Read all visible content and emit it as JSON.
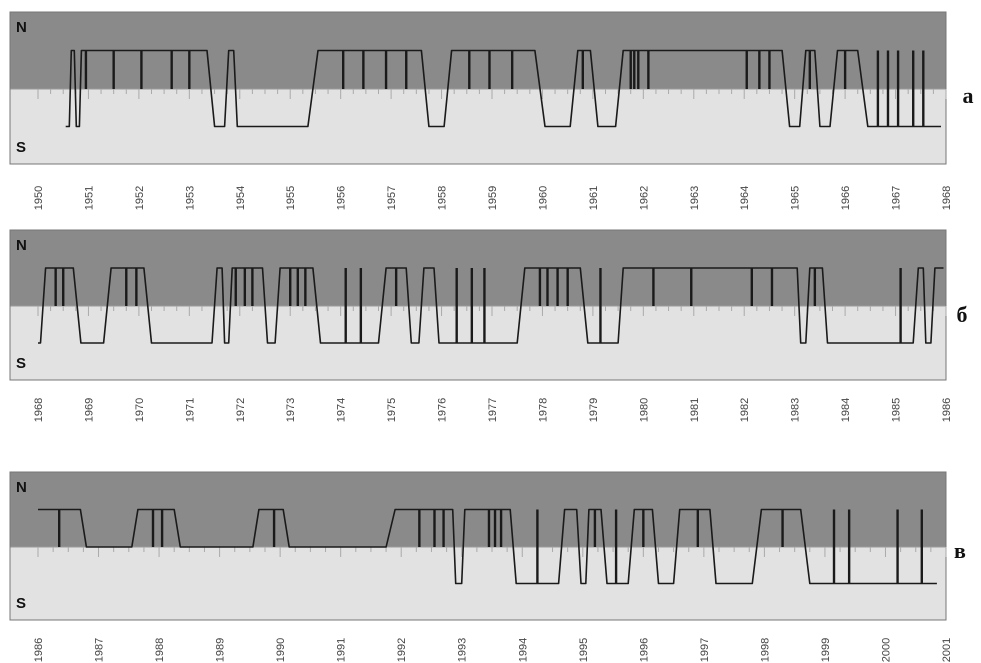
{
  "chart_data": [
    {
      "type": "line",
      "label": "а",
      "north_label": "N",
      "south_label": "S",
      "x_ticks": [
        "1950",
        "1951",
        "1952",
        "1953",
        "1954",
        "1955",
        "1956",
        "1957",
        "1958",
        "1959",
        "1960",
        "1961",
        "1962",
        "1963",
        "1964",
        "1965",
        "1966",
        "1967",
        "1968"
      ],
      "xlim": [
        1950,
        1968
      ],
      "ylim": [
        -1,
        1
      ],
      "y_levels": {
        "N": 1,
        "S": -1
      },
      "colors": {
        "north_bg": "#8a8a8a",
        "south_bg": "#e2e2e2",
        "line": "#1a1a1a"
      },
      "sectors": [
        {
          "s": 1950.55,
          "e": 1950.62,
          "p": -1
        },
        {
          "s": 1950.66,
          "e": 1950.72,
          "p": 1
        },
        {
          "s": 1950.76,
          "e": 1950.82,
          "p": -1
        },
        {
          "s": 1950.86,
          "e": 1953.35,
          "p": 1
        },
        {
          "s": 1953.5,
          "e": 1953.7,
          "p": -1
        },
        {
          "s": 1953.78,
          "e": 1953.88,
          "p": 1
        },
        {
          "s": 1953.95,
          "e": 1955.35,
          "p": -1
        },
        {
          "s": 1955.55,
          "e": 1957.6,
          "p": 1
        },
        {
          "s": 1957.75,
          "e": 1958.05,
          "p": -1
        },
        {
          "s": 1958.2,
          "e": 1959.85,
          "p": 1
        },
        {
          "s": 1960.05,
          "e": 1960.55,
          "p": -1
        },
        {
          "s": 1960.7,
          "e": 1960.95,
          "p": 1
        },
        {
          "s": 1961.1,
          "e": 1961.45,
          "p": -1
        },
        {
          "s": 1961.6,
          "e": 1964.75,
          "p": 1
        },
        {
          "s": 1964.9,
          "e": 1965.1,
          "p": -1
        },
        {
          "s": 1965.22,
          "e": 1965.4,
          "p": 1
        },
        {
          "s": 1965.5,
          "e": 1965.7,
          "p": -1
        },
        {
          "s": 1965.85,
          "e": 1966.25,
          "p": 1
        },
        {
          "s": 1966.45,
          "e": 1967.9,
          "p": -1
        }
      ],
      "spikes": [
        1950.95,
        1951.5,
        1952.05,
        1952.65,
        1953.0,
        1956.05,
        1956.45,
        1956.9,
        1957.3,
        1958.55,
        1958.95,
        1959.4,
        1959.95,
        1960.8,
        1961.75,
        1961.82,
        1961.9,
        1962.1,
        1964.05,
        1964.3,
        1964.5,
        1965.3,
        1966.0,
        1966.65,
        1966.85,
        1967.05,
        1967.35,
        1967.55
      ]
    },
    {
      "type": "line",
      "label": "б",
      "north_label": "N",
      "south_label": "S",
      "x_ticks": [
        "1968",
        "1969",
        "1970",
        "1971",
        "1972",
        "1973",
        "1974",
        "1975",
        "1976",
        "1977",
        "1978",
        "1979",
        "1980",
        "1981",
        "1982",
        "1983",
        "1984",
        "1985",
        "1986"
      ],
      "xlim": [
        1968,
        1986
      ],
      "ylim": [
        -1,
        1
      ],
      "y_levels": {
        "N": 1,
        "S": -1
      },
      "colors": {
        "north_bg": "#8a8a8a",
        "south_bg": "#e2e2e2",
        "line": "#1a1a1a"
      },
      "sectors": [
        {
          "s": 1968.0,
          "e": 1968.05,
          "p": -1
        },
        {
          "s": 1968.15,
          "e": 1968.7,
          "p": 1
        },
        {
          "s": 1968.85,
          "e": 1969.3,
          "p": -1
        },
        {
          "s": 1969.45,
          "e": 1970.1,
          "p": 1
        },
        {
          "s": 1970.25,
          "e": 1971.45,
          "p": -1
        },
        {
          "s": 1971.55,
          "e": 1971.65,
          "p": 1
        },
        {
          "s": 1971.7,
          "e": 1971.78,
          "p": -1
        },
        {
          "s": 1971.85,
          "e": 1972.45,
          "p": 1
        },
        {
          "s": 1972.55,
          "e": 1972.7,
          "p": -1
        },
        {
          "s": 1972.8,
          "e": 1973.45,
          "p": 1
        },
        {
          "s": 1973.6,
          "e": 1974.75,
          "p": -1
        },
        {
          "s": 1974.9,
          "e": 1975.3,
          "p": 1
        },
        {
          "s": 1975.4,
          "e": 1975.55,
          "p": -1
        },
        {
          "s": 1975.65,
          "e": 1975.85,
          "p": 1
        },
        {
          "s": 1975.95,
          "e": 1977.5,
          "p": -1
        },
        {
          "s": 1977.65,
          "e": 1978.75,
          "p": 1
        },
        {
          "s": 1978.9,
          "e": 1979.5,
          "p": -1
        },
        {
          "s": 1979.6,
          "e": 1983.05,
          "p": 1
        },
        {
          "s": 1983.12,
          "e": 1983.22,
          "p": -1
        },
        {
          "s": 1983.3,
          "e": 1983.55,
          "p": 1
        },
        {
          "s": 1983.65,
          "e": 1985.35,
          "p": -1
        },
        {
          "s": 1985.45,
          "e": 1985.55,
          "p": 1
        },
        {
          "s": 1985.6,
          "e": 1985.7,
          "p": -1
        },
        {
          "s": 1985.78,
          "e": 1985.95,
          "p": 1
        }
      ],
      "spikes": [
        1968.35,
        1968.5,
        1969.75,
        1969.95,
        1971.92,
        1972.1,
        1972.25,
        1973.0,
        1973.15,
        1973.3,
        1974.1,
        1974.4,
        1975.1,
        1976.3,
        1976.6,
        1976.85,
        1977.95,
        1978.1,
        1978.3,
        1978.5,
        1979.15,
        1980.2,
        1980.95,
        1982.15,
        1982.55,
        1983.4,
        1985.1
      ]
    },
    {
      "type": "line",
      "label": "в",
      "north_label": "N",
      "south_label": "S",
      "x_ticks": [
        "1986",
        "1987",
        "1988",
        "1989",
        "1990",
        "1991",
        "1992",
        "1993",
        "1994",
        "1995",
        "1996",
        "1997",
        "1998",
        "1999",
        "2000",
        "2001"
      ],
      "xlim": [
        1986,
        2001
      ],
      "ylim": [
        -1,
        1
      ],
      "y_levels": {
        "N": 1,
        "S": -1
      },
      "colors": {
        "north_bg": "#8a8a8a",
        "south_bg": "#e2e2e2",
        "line": "#1a1a1a"
      },
      "sectors": [
        {
          "s": 1986.0,
          "e": 1986.7,
          "p": 1
        },
        {
          "s": 1986.8,
          "e": 1987.55,
          "p": 0
        },
        {
          "s": 1987.65,
          "e": 1988.25,
          "p": 1
        },
        {
          "s": 1988.35,
          "e": 1989.55,
          "p": 0
        },
        {
          "s": 1989.65,
          "e": 1990.05,
          "p": 1
        },
        {
          "s": 1990.15,
          "e": 1991.75,
          "p": 0
        },
        {
          "s": 1991.9,
          "e": 1992.85,
          "p": 1
        },
        {
          "s": 1992.9,
          "e": 1993.0,
          "p": -1
        },
        {
          "s": 1993.05,
          "e": 1993.8,
          "p": 1
        },
        {
          "s": 1993.9,
          "e": 1994.6,
          "p": -1
        },
        {
          "s": 1994.7,
          "e": 1994.9,
          "p": 1
        },
        {
          "s": 1994.97,
          "e": 1995.05,
          "p": -1
        },
        {
          "s": 1995.1,
          "e": 1995.3,
          "p": 1
        },
        {
          "s": 1995.4,
          "e": 1995.75,
          "p": -1
        },
        {
          "s": 1995.85,
          "e": 1996.15,
          "p": 1
        },
        {
          "s": 1996.25,
          "e": 1996.5,
          "p": -1
        },
        {
          "s": 1996.6,
          "e": 1997.1,
          "p": 1
        },
        {
          "s": 1997.2,
          "e": 1997.8,
          "p": -1
        },
        {
          "s": 1997.95,
          "e": 1998.6,
          "p": 1
        },
        {
          "s": 1998.75,
          "e": 2000.85,
          "p": -1
        }
      ],
      "spikes": [
        1986.35,
        1987.9,
        1988.05,
        1989.9,
        1992.3,
        1992.55,
        1992.7,
        1993.45,
        1993.55,
        1993.65,
        1994.25,
        1995.2,
        1995.55,
        1996.0,
        1996.9,
        1998.3,
        1999.15,
        1999.4,
        2000.2,
        2000.6
      ]
    }
  ]
}
